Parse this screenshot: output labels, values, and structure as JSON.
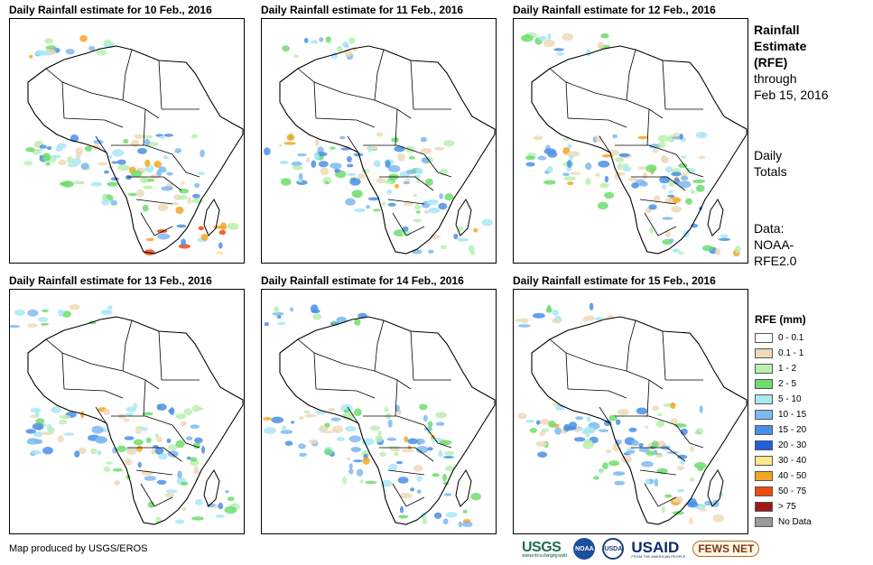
{
  "panels": [
    {
      "title": "Daily Rainfall estimate for 10 Feb., 2016",
      "seed": 10,
      "heavy": true
    },
    {
      "title": "Daily Rainfall estimate for 11 Feb., 2016",
      "seed": 11,
      "heavy": false
    },
    {
      "title": "Daily Rainfall estimate for 12 Feb., 2016",
      "seed": 12,
      "heavy": false
    },
    {
      "title": "Daily Rainfall estimate for 13 Feb., 2016",
      "seed": 13,
      "heavy": false
    },
    {
      "title": "Daily Rainfall estimate for 14 Feb., 2016",
      "seed": 14,
      "heavy": false
    },
    {
      "title": "Daily Rainfall estimate for 15 Feb., 2016",
      "seed": 15,
      "heavy": false
    }
  ],
  "side": {
    "heading_line1": "Rainfall",
    "heading_line2": "Estimate",
    "heading_line3": "(RFE)",
    "through": "through",
    "through_date": "Feb 15, 2016",
    "totals_line1": "Daily",
    "totals_line2": "Totals",
    "data_line1": "Data:",
    "data_line2": "NOAA-",
    "data_line3": "RFE2.0"
  },
  "legend": {
    "title": "RFE (mm)",
    "items": [
      {
        "label": "0 - 0.1",
        "color": "#ffffff"
      },
      {
        "label": "0.1 - 1",
        "color": "#efd9b9"
      },
      {
        "label": "1 - 2",
        "color": "#b9f0b0"
      },
      {
        "label": "2 - 5",
        "color": "#6fdc6f"
      },
      {
        "label": "5 - 10",
        "color": "#a8e8f5"
      },
      {
        "label": "10 - 15",
        "color": "#7fb8ef"
      },
      {
        "label": "15 - 20",
        "color": "#4a8fe6"
      },
      {
        "label": "20 - 30",
        "color": "#1f5fd9"
      },
      {
        "label": "30 - 40",
        "color": "#fde68a"
      },
      {
        "label": "40 - 50",
        "color": "#f5a623"
      },
      {
        "label": "50 - 75",
        "color": "#f04a10"
      },
      {
        "label": "> 75",
        "color": "#a11a1a"
      },
      {
        "label": "No Data",
        "color": "#9a9a9a"
      }
    ]
  },
  "credit": "Map produced by USGS/EROS",
  "logos": {
    "usgs": "USGS",
    "usgs_tag": "science for a changing world",
    "noaa": "NOAA",
    "usda": "USDA",
    "usaid": "USAID",
    "usaid_tag": "FROM THE AMERICAN PEOPLE",
    "fews": "FEWS NET"
  }
}
